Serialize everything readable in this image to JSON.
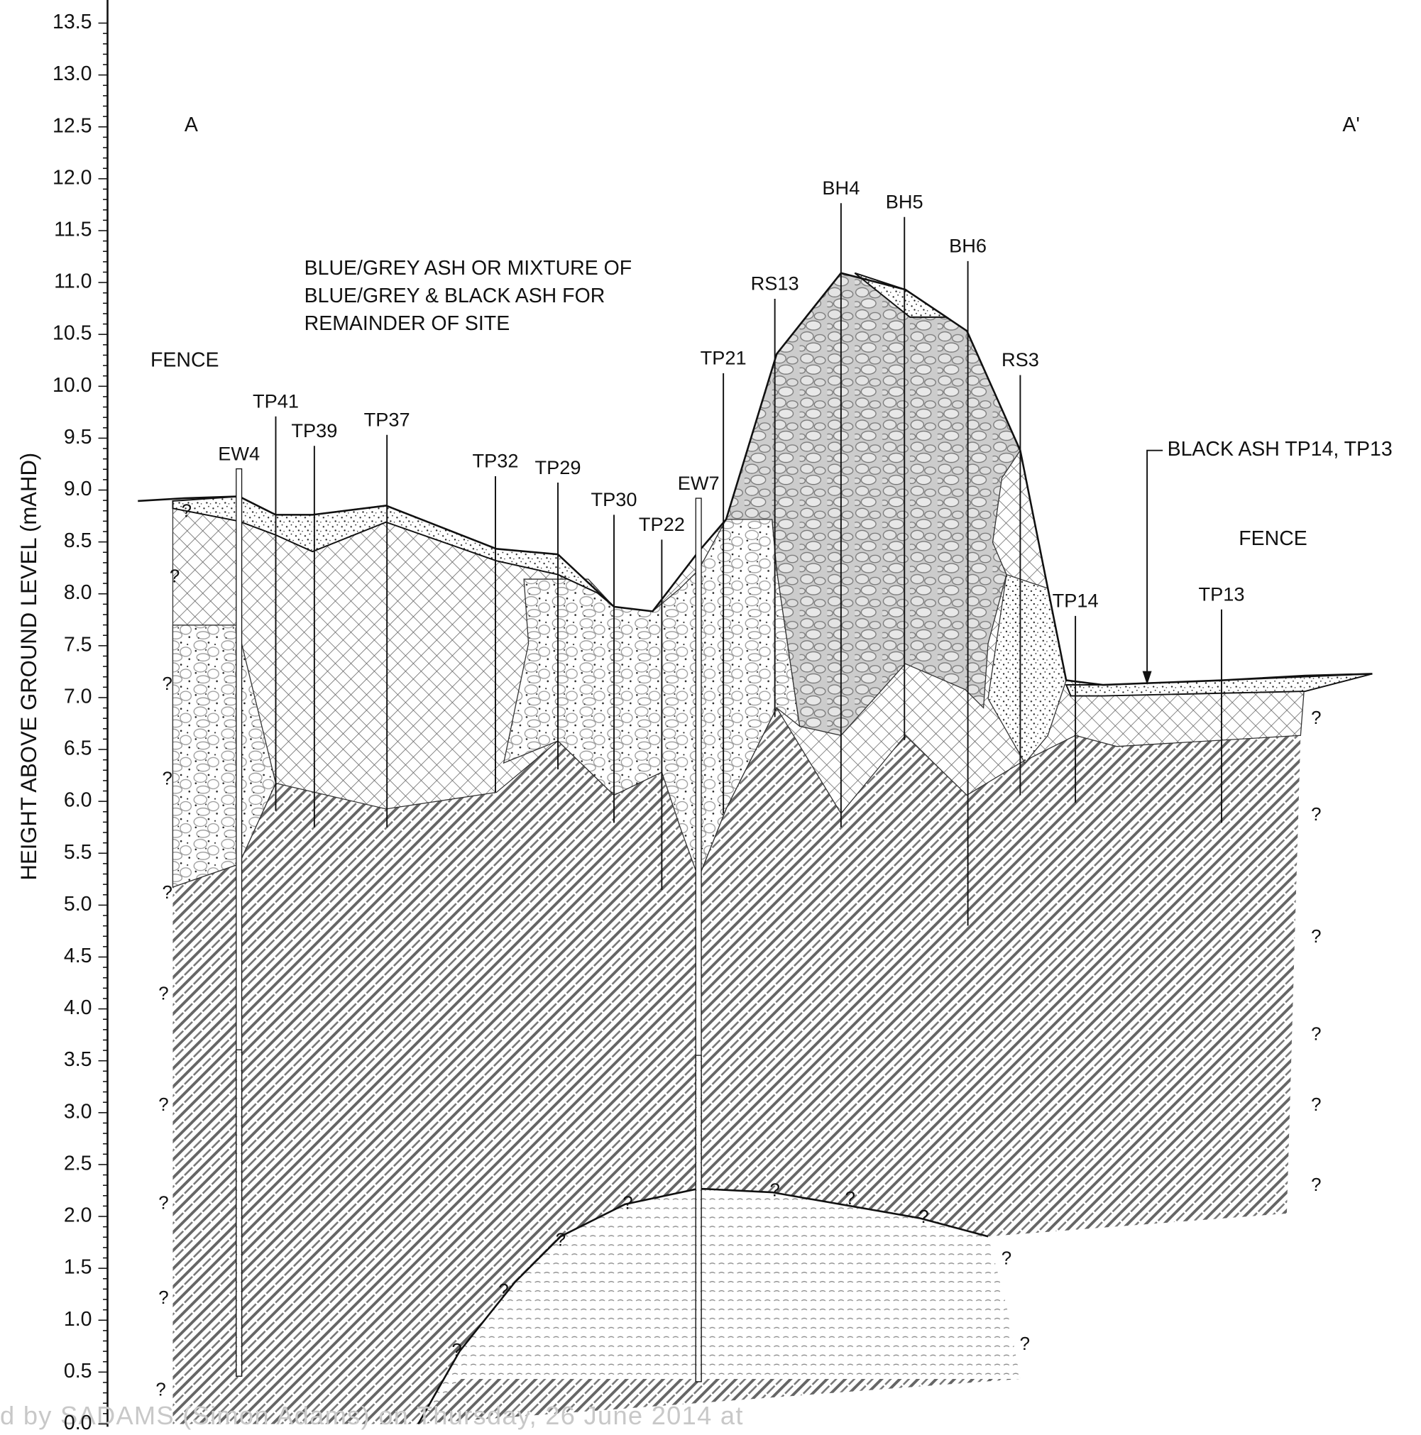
{
  "axis": {
    "label": "HEIGHT ABOVE GROUND LEVEL (mAHD)",
    "ticks": [
      "0.0",
      "0.5",
      "1.0",
      "1.5",
      "2.0",
      "2.5",
      "3.0",
      "3.5",
      "4.0",
      "4.5",
      "5.0",
      "5.5",
      "6.0",
      "6.5",
      "7.0",
      "7.5",
      "8.0",
      "8.5",
      "9.0",
      "9.5",
      "10.0",
      "10.5",
      "11.0",
      "11.5",
      "12.0",
      "12.5",
      "13.0",
      "13.5"
    ]
  },
  "section_ends": [
    "A",
    "A'"
  ],
  "annotations": {
    "fence_left": "FENCE",
    "fence_right": "FENCE",
    "note": [
      "BLUE/GREY ASH OR MIXTURE OF",
      "BLUE/GREY & BLACK ASH FOR",
      "REMAINDER OF SITE"
    ],
    "black_ash": "BLACK ASH TP14, TP13"
  },
  "boreholes": [
    "EW4",
    "TP41",
    "TP39",
    "TP37",
    "TP32",
    "TP29",
    "TP30",
    "TP22",
    "EW7",
    "TP21",
    "RS13",
    "BH4",
    "BH5",
    "BH6",
    "RS3",
    "TP14",
    "TP13"
  ],
  "uncertain_marker": "?",
  "footer": "d by SADAMS (Simon Adams) on Thursday, 26 June 2014 at"
}
